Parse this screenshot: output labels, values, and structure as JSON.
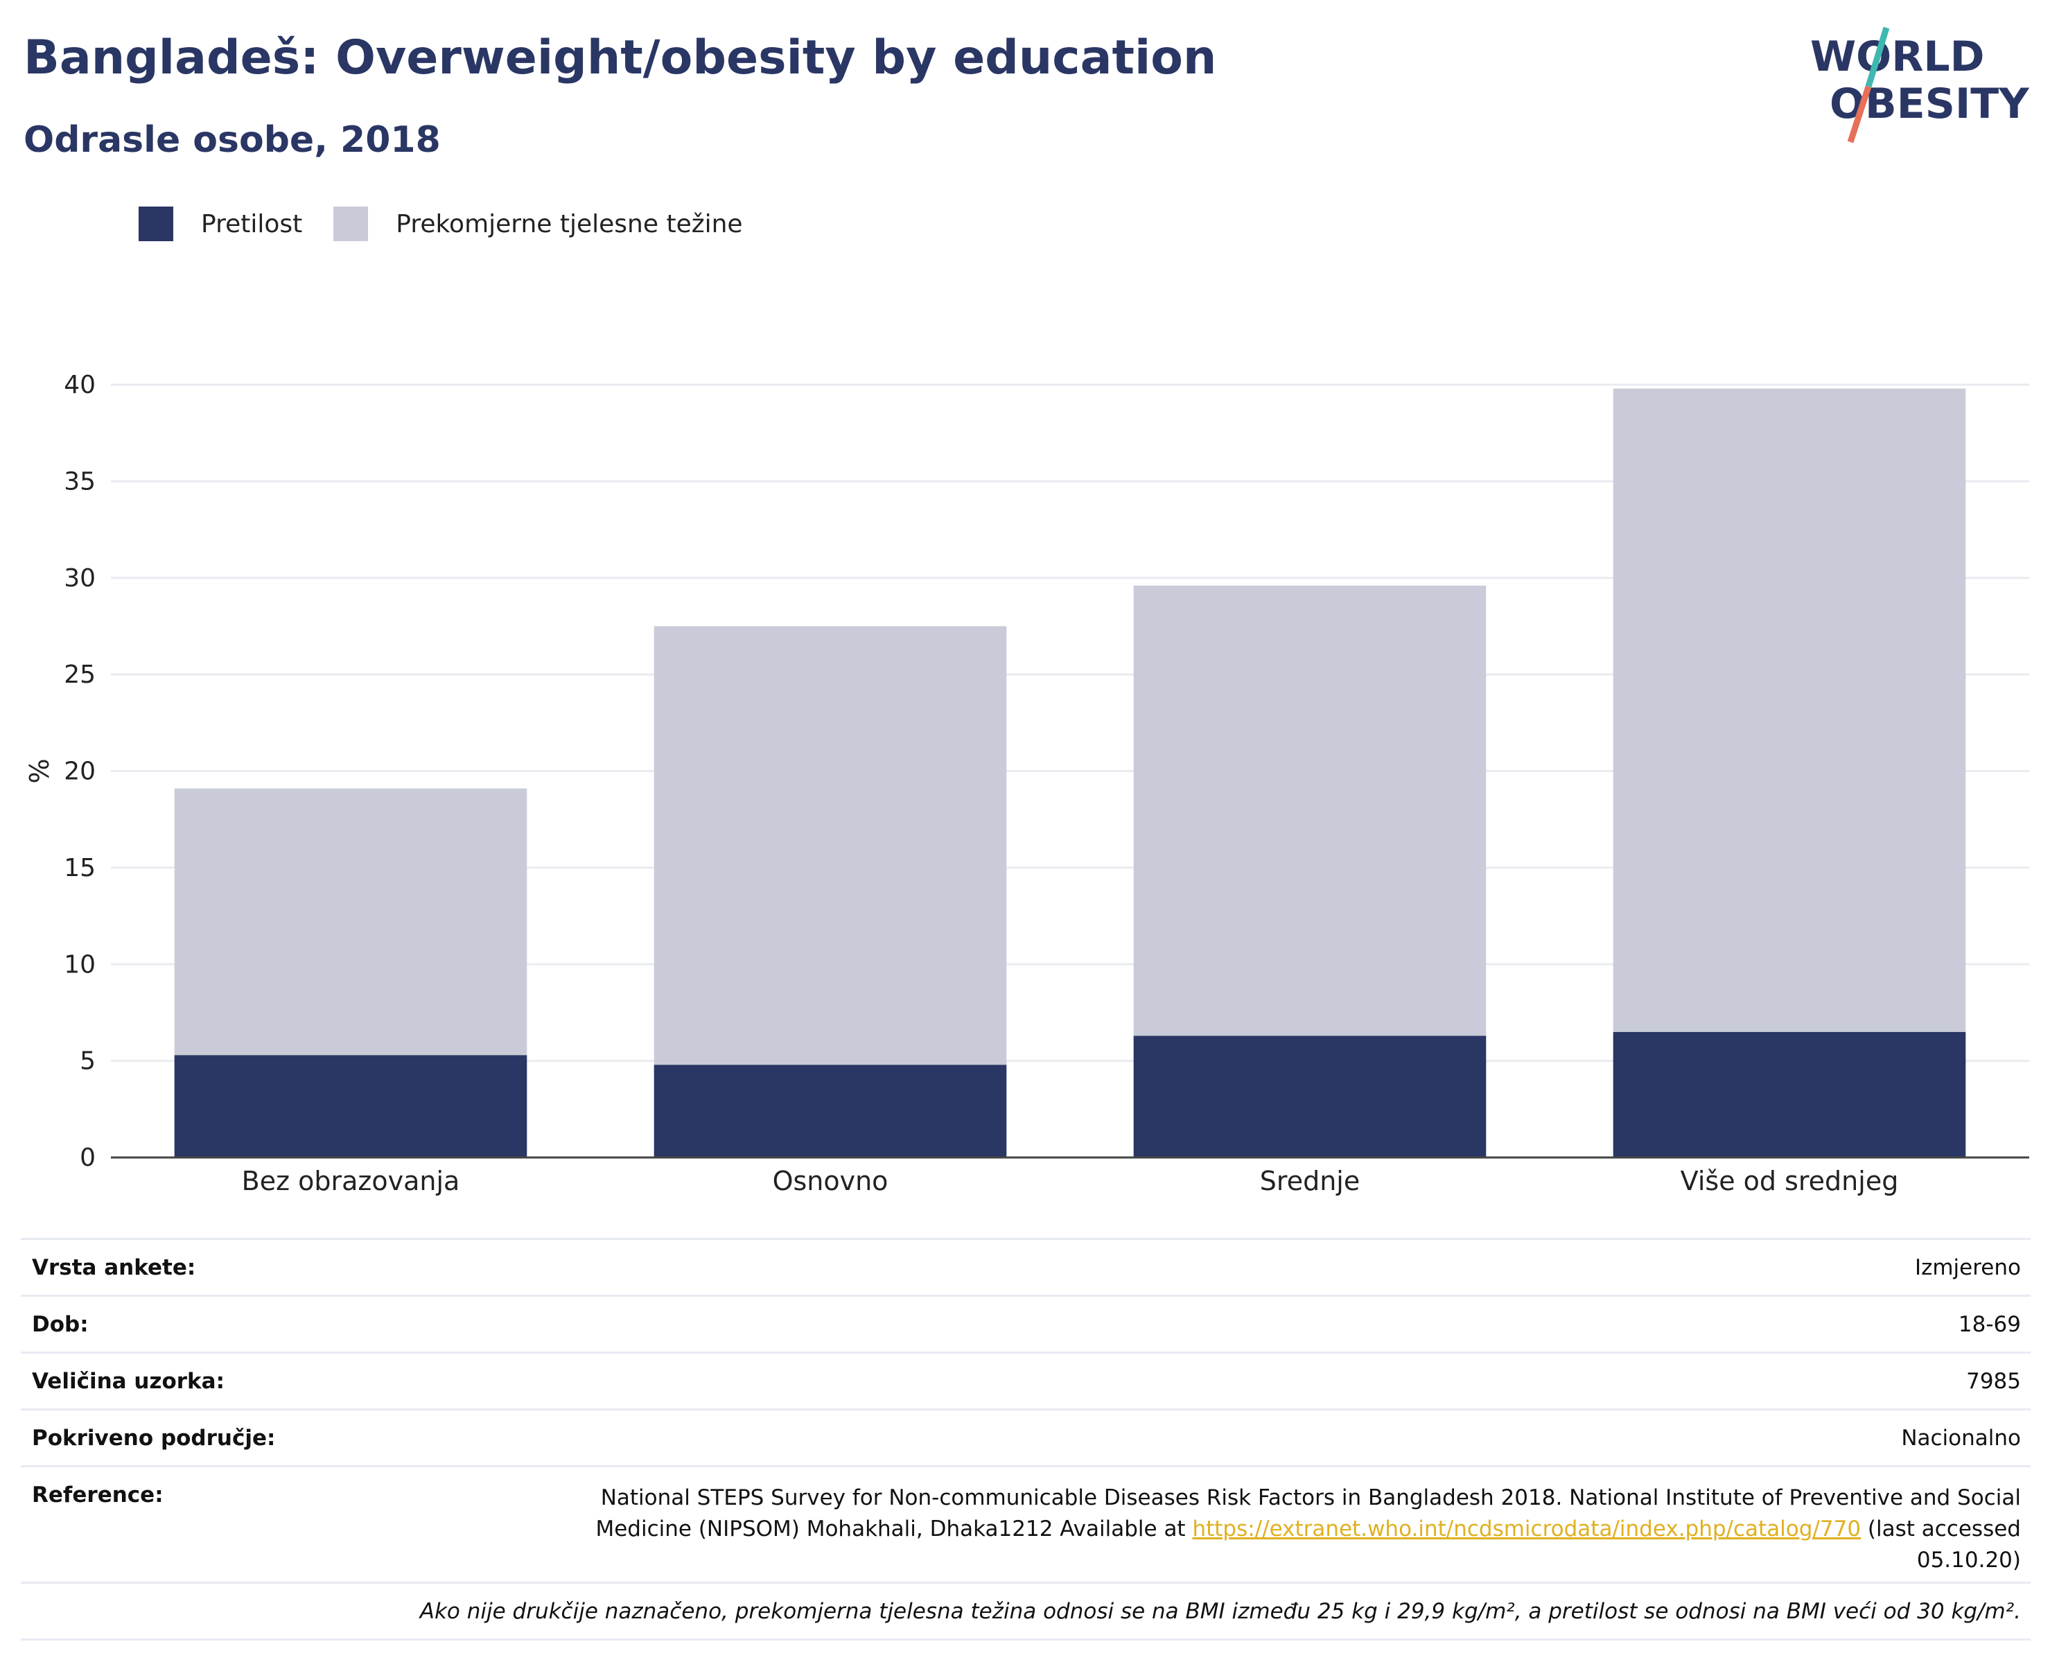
{
  "header": {
    "title": "Bangladeš: Overweight/obesity by education",
    "subtitle": "Odrasle osobe, 2018"
  },
  "logo": {
    "line1": "WORLD",
    "line2": "OBESITY"
  },
  "colors": {
    "obesity": "#2a3664",
    "overweight": "#c9ccd8",
    "accent_teal": "#3fb8b0",
    "accent_red": "#e7705a",
    "link": "#e0b020"
  },
  "chart_data": {
    "type": "bar",
    "stacked": true,
    "categories": [
      "Bez obrazovanja",
      "Osnovno",
      "Srednje",
      "Više od srednjeg"
    ],
    "series": [
      {
        "name": "Pretilost",
        "values": [
          5.3,
          4.8,
          6.3,
          6.5
        ]
      },
      {
        "name": "Prekomjerne tjelesne težine",
        "values": [
          13.8,
          22.7,
          23.3,
          33.3
        ]
      }
    ],
    "ylabel": "%",
    "ylim": [
      0,
      40
    ],
    "yticks": [
      0,
      5,
      10,
      15,
      20,
      25,
      30,
      35,
      40
    ],
    "grid": true,
    "legend": "top-left"
  },
  "meta": {
    "survey_type_label": "Vrsta ankete:",
    "survey_type_value": "Izmjereno",
    "age_label": "Dob:",
    "age_value": "18-69",
    "sample_label": "Veličina uzorka:",
    "sample_value": "7985",
    "area_label": "Pokriveno područje:",
    "area_value": "Nacionalno",
    "reference_label": "Reference:",
    "reference_text_1": "National STEPS Survey for Non-communicable Diseases Risk Factors in Bangladesh 2018. National Institute of Preventive and Social Medicine (NIPSOM) Mohakhali, Dhaka1212 Available at ",
    "reference_link": "https://extranet.who.int/ncdsmicrodata/index.php/catalog/770",
    "reference_text_2": " (last accessed 05.10.20)",
    "note": "Ako nije drukčije naznačeno, prekomjerna tjelesna težina odnosi se na BMI između 25 kg i 29,9 kg/m², a pretilost se odnosi na BMI veći od 30 kg/m²."
  }
}
